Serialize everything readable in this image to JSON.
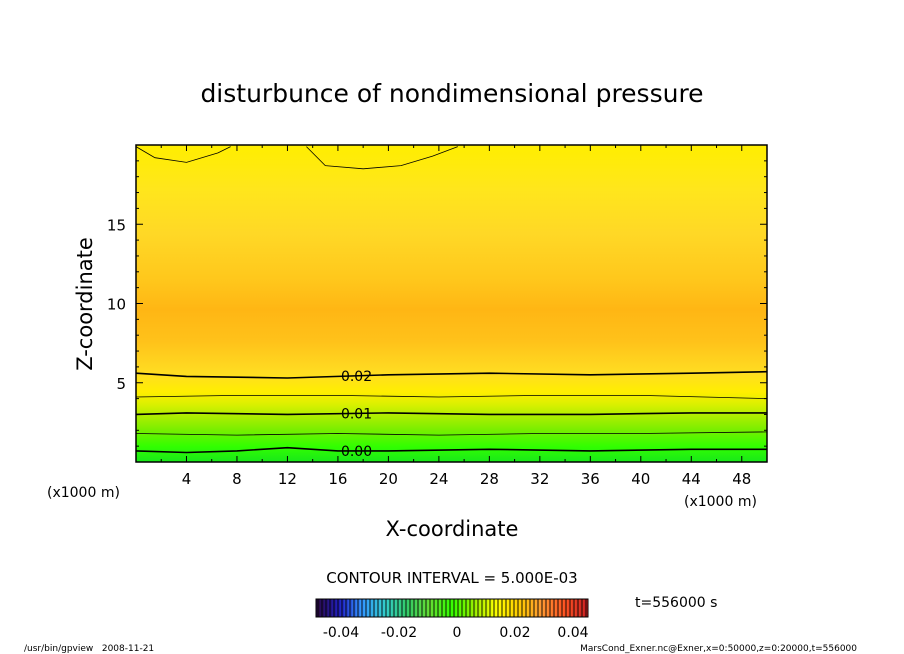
{
  "chart_data": {
    "type": "contour",
    "title": "disturbunce of nondimensional pressure",
    "xlabel": "X-coordinate",
    "ylabel": "Z-coordinate",
    "x_unit_left": "(x1000 m)",
    "x_unit_right": "(x1000 m)",
    "xlim": [
      0,
      50
    ],
    "ylim": [
      0,
      20
    ],
    "xticks": [
      4,
      8,
      12,
      16,
      20,
      24,
      28,
      32,
      36,
      40,
      44,
      48
    ],
    "yticks": [
      5,
      10,
      15
    ],
    "contour_lines": [
      {
        "label": "0.00",
        "level": 0.0,
        "x": [
          0,
          4,
          8,
          12,
          16,
          20,
          28,
          36,
          44,
          50
        ],
        "z": [
          0.7,
          0.6,
          0.7,
          0.9,
          0.7,
          0.7,
          0.8,
          0.7,
          0.8,
          0.8
        ]
      },
      {
        "label": "",
        "level": 0.005,
        "x": [
          0,
          8,
          16,
          24,
          32,
          40,
          50
        ],
        "z": [
          1.8,
          1.7,
          1.8,
          1.7,
          1.8,
          1.8,
          1.9
        ]
      },
      {
        "label": "0.01",
        "level": 0.01,
        "x": [
          0,
          4,
          12,
          20,
          28,
          36,
          44,
          50
        ],
        "z": [
          3.0,
          3.1,
          3.0,
          3.1,
          3.0,
          3.0,
          3.1,
          3.1
        ]
      },
      {
        "label": "",
        "level": 0.015,
        "x": [
          0,
          8,
          16,
          24,
          32,
          40,
          50
        ],
        "z": [
          4.1,
          4.2,
          4.2,
          4.1,
          4.2,
          4.2,
          4.0
        ]
      },
      {
        "label": "0.02",
        "level": 0.02,
        "x": [
          0,
          4,
          12,
          20,
          28,
          36,
          44,
          50
        ],
        "z": [
          5.6,
          5.4,
          5.3,
          5.5,
          5.6,
          5.5,
          5.6,
          5.7
        ]
      },
      {
        "label": "",
        "level": 0.04,
        "x": [
          0,
          1.5,
          4,
          6.5,
          7.5
        ],
        "z": [
          19.9,
          19.2,
          18.9,
          19.5,
          19.9
        ]
      },
      {
        "label": "",
        "level": 0.04,
        "x": [
          13.5,
          15,
          18,
          21,
          23.5,
          25.5
        ],
        "z": [
          19.9,
          18.7,
          18.5,
          18.7,
          19.3,
          19.9
        ]
      }
    ],
    "colorbar": {
      "ticks": [
        "-0.04",
        "-0.02",
        "0",
        "0.02",
        "0.04"
      ],
      "values": [
        -0.04,
        -0.02,
        0,
        0.02,
        0.04
      ],
      "colors_low_to_high": [
        "#2a0a4a",
        "#2020c0",
        "#3399ff",
        "#33cccc",
        "#33cc66",
        "#66dd33",
        "#33ff00",
        "#99ee00",
        "#ffff00",
        "#ffcc00",
        "#ff9933",
        "#ff5522",
        "#cc2222"
      ]
    },
    "contour_interval_text": "CONTOUR INTERVAL = 5.000E-03",
    "time_text": "t=556000 s"
  },
  "footer": {
    "left": "/usr/bin/gpview   2008-11-21",
    "right": "MarsCond_Exner.nc@Exner,x=0:50000,z=0:20000,t=556000"
  }
}
